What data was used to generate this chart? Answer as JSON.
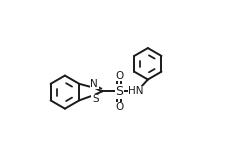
{
  "bg_color": "#ffffff",
  "line_color": "#1a1a1a",
  "line_width": 1.4,
  "font_size": 7.5,
  "figsize": [
    2.26,
    1.59
  ],
  "dpi": 100,
  "xlim": [
    0.0,
    1.0
  ],
  "ylim": [
    0.0,
    1.0
  ]
}
